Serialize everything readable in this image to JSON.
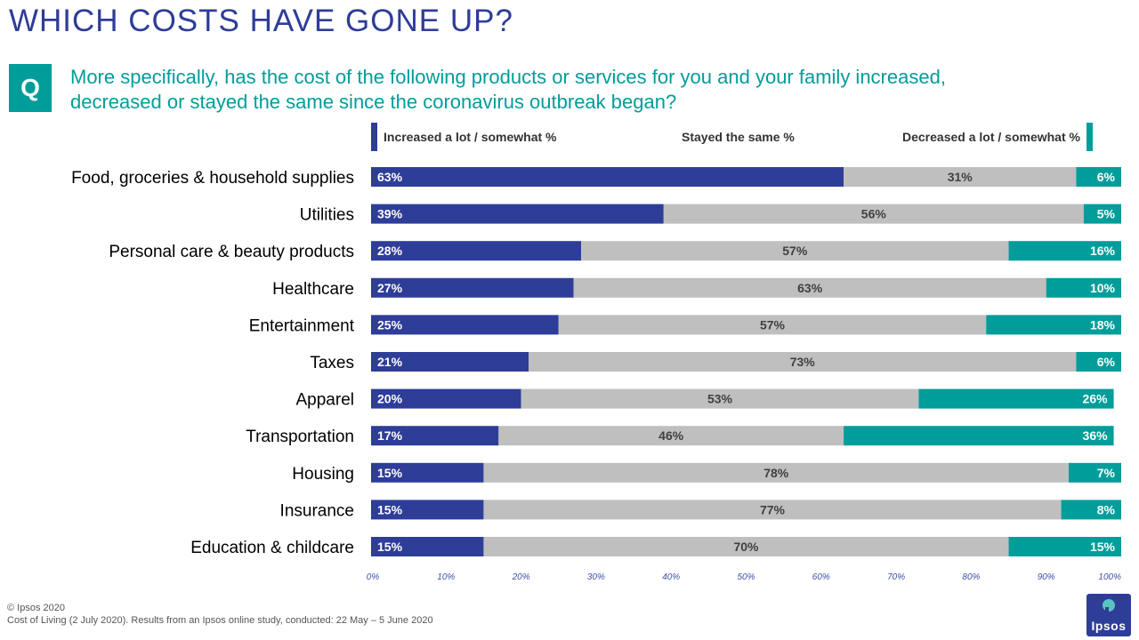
{
  "title": "WHICH COSTS HAVE GONE UP?",
  "question": {
    "badge": "Q",
    "line1": "More specifically, has the cost of the following products or services for you and your family increased,",
    "line2": "decreased or stayed the same since the coronavirus outbreak began?"
  },
  "colors": {
    "increased": "#2E3D98",
    "same": "#BFBFBF",
    "decreased": "#009D9A",
    "axis_text": "#3F52A8"
  },
  "chart_data": {
    "type": "bar",
    "orientation": "horizontal",
    "stacked": true,
    "categories": [
      "Food, groceries & household supplies",
      "Utilities",
      "Personal care & beauty products",
      "Healthcare",
      "Entertainment",
      "Taxes",
      "Apparel",
      "Transportation",
      "Housing",
      "Insurance",
      "Education & childcare"
    ],
    "series": [
      {
        "name": "Increased a lot / somewhat %",
        "key": "increased",
        "values": [
          63,
          39,
          28,
          27,
          25,
          21,
          20,
          17,
          15,
          15,
          15
        ]
      },
      {
        "name": "Stayed the same %",
        "key": "same",
        "values": [
          31,
          56,
          57,
          63,
          57,
          73,
          53,
          46,
          78,
          77,
          70
        ]
      },
      {
        "name": "Decreased a lot / somewhat %",
        "key": "decreased",
        "values": [
          6,
          5,
          16,
          10,
          18,
          6,
          26,
          36,
          7,
          8,
          15
        ]
      }
    ],
    "x_ticks": [
      "0%",
      "10%",
      "20%",
      "30%",
      "40%",
      "50%",
      "60%",
      "70%",
      "80%",
      "90%",
      "100%"
    ],
    "xlim": [
      0,
      100
    ],
    "legend_position": "top",
    "grid": false
  },
  "footer": {
    "copyright": "© Ipsos 2020",
    "source": "Cost of Living (2 July 2020). Results from an Ipsos online study, conducted: 22 May  – 5 June 2020"
  },
  "logo": {
    "text": "Ipsos"
  }
}
